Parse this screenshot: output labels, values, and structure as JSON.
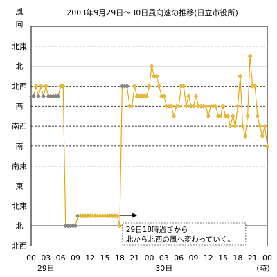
{
  "chart_data": {
    "type": "line",
    "title": "2003年9月29日～30日風向速の推移(日立市役所)",
    "y_axis_title_chars": [
      "風",
      "向"
    ],
    "y_categories": [
      "北西",
      "北",
      "北東",
      "東",
      "南東",
      "南",
      "南西",
      "西",
      "北西",
      "北",
      "北東"
    ],
    "y_range": [
      0,
      11
    ],
    "x_ticks": [
      "00",
      "03",
      "06",
      "09",
      "12",
      "15",
      "18",
      "21",
      "00",
      "03",
      "06",
      "09",
      "12",
      "15",
      "18",
      "21",
      "00"
    ],
    "x_day_labels": [
      {
        "hour": 3,
        "text": "29日"
      },
      {
        "hour": 27,
        "text": "30日"
      }
    ],
    "x_unit": "(時)",
    "x_range": [
      0,
      48
    ],
    "grid": "horizontal-dashed",
    "line_color": "#e8a000",
    "calm_marker_color": "#888888",
    "wind_marker_color": "#f0c030",
    "annotation": {
      "lines": [
        "29日18時過ぎから",
        "北から北西の風へ変わっていく。"
      ],
      "arrow_from_hour": 18,
      "arrow_to_hour": 21
    },
    "series": [
      {
        "x": [
          0,
          0.5,
          1,
          1.5,
          2,
          2.5,
          3,
          3.5,
          4,
          4.5,
          5,
          5.5,
          6,
          6.5,
          7,
          7.5,
          8,
          8.5,
          9,
          9.5,
          10,
          10.5,
          11,
          11.5,
          12,
          12.5,
          13,
          13.5,
          14,
          14.5,
          15,
          15.5,
          16,
          16.5,
          17,
          17.5,
          18,
          18.5,
          19,
          19.5,
          20,
          20.5,
          21,
          21.5,
          22,
          22.5,
          23,
          23.5,
          24,
          24.5,
          25,
          25.5,
          26,
          26.5,
          27,
          27.5,
          28,
          28.5,
          29,
          29.5,
          30,
          30.5,
          31,
          31.5,
          32,
          32.5,
          33,
          33.5,
          34,
          34.5,
          35,
          35.5,
          36,
          36.5,
          37,
          37.5,
          38,
          38.5,
          39,
          39.5,
          40,
          40.5,
          41,
          41.5,
          42,
          42.5,
          43,
          43.5,
          44,
          44.5,
          45,
          45.5,
          46,
          46.5,
          47,
          47.5,
          48
        ],
        "y": [
          7.5,
          7.5,
          8,
          7.5,
          8,
          7.5,
          8,
          7.5,
          7.5,
          7.5,
          7.5,
          7.5,
          8,
          8,
          1,
          1,
          1,
          1,
          1,
          1.5,
          1.5,
          1.5,
          1.5,
          1.5,
          1.5,
          1.5,
          1.5,
          1.5,
          1.5,
          1.5,
          1.5,
          1.5,
          1.5,
          1.5,
          1.5,
          1.5,
          1,
          8,
          8,
          8,
          7,
          7,
          8,
          7.5,
          7.5,
          7.5,
          7.5,
          7.5,
          8,
          9,
          8.5,
          8.5,
          8,
          7.5,
          7.5,
          7,
          7,
          7,
          6.5,
          7,
          7,
          8,
          8,
          7,
          7.5,
          7,
          7,
          7.5,
          7,
          7,
          7,
          7,
          6.5,
          7,
          7,
          7,
          6.5,
          6.5,
          7,
          6.5,
          6.5,
          6,
          6.5,
          6,
          7,
          8.5,
          6,
          5.5,
          6.5,
          9.5,
          8,
          8,
          6.5,
          6,
          5.5,
          6,
          5
        ],
        "calm": [
          true,
          true,
          false,
          true,
          false,
          true,
          false,
          true,
          true,
          true,
          true,
          true,
          false,
          false,
          true,
          true,
          true,
          true,
          true,
          true,
          false,
          false,
          false,
          false,
          false,
          false,
          false,
          false,
          false,
          false,
          false,
          false,
          false,
          false,
          false,
          false,
          false,
          true,
          true,
          true,
          false,
          false,
          false,
          false,
          false,
          false,
          false,
          false,
          false,
          false,
          false,
          false,
          false,
          false,
          false,
          false,
          false,
          false,
          false,
          false,
          false,
          false,
          false,
          false,
          false,
          false,
          false,
          false,
          false,
          false,
          false,
          false,
          false,
          false,
          false,
          false,
          false,
          false,
          false,
          false,
          false,
          false,
          false,
          false,
          false,
          false,
          false,
          false,
          false,
          false,
          false,
          false,
          false,
          false,
          false,
          false,
          false
        ]
      }
    ]
  }
}
